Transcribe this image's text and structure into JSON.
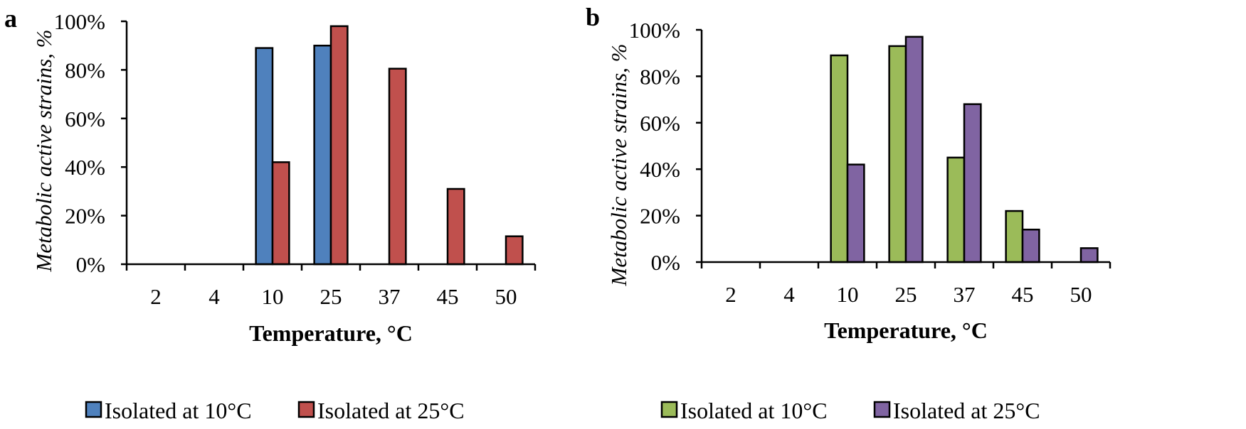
{
  "chart_data": [
    {
      "panel": "a",
      "type": "bar",
      "categories": [
        "2",
        "4",
        "10",
        "25",
        "37",
        "45",
        "50"
      ],
      "series": [
        {
          "name": "Isolated at 10°C",
          "color": "#4F81BD",
          "values": [
            0,
            0,
            89,
            90,
            0,
            0,
            0
          ]
        },
        {
          "name": "Isolated at 25°C",
          "color": "#C0504D",
          "values": [
            0,
            0,
            42,
            98,
            80.5,
            31,
            11.5
          ]
        }
      ],
      "ylabel": "Metabolic active strains, %",
      "xlabel": "Temperature, °C",
      "ylim": [
        0,
        100
      ],
      "yticks": [
        "0%",
        "20%",
        "40%",
        "60%",
        "80%",
        "100%"
      ],
      "legend": "bottom",
      "grid": false
    },
    {
      "panel": "b",
      "type": "bar",
      "categories": [
        "2",
        "4",
        "10",
        "25",
        "37",
        "45",
        "50"
      ],
      "series": [
        {
          "name": "Isolated at 10°C",
          "color": "#9BBB59",
          "values": [
            0,
            0,
            89,
            93,
            45,
            22,
            0
          ]
        },
        {
          "name": "Isolated at 25°C",
          "color": "#8064A2",
          "values": [
            0,
            0,
            42,
            97,
            68,
            14,
            6
          ]
        }
      ],
      "ylabel": "Metabolic active strains, %",
      "xlabel": "Temperature, °C",
      "ylim": [
        0,
        100
      ],
      "yticks": [
        "0%",
        "20%",
        "40%",
        "60%",
        "80%",
        "100%"
      ],
      "legend": "bottom",
      "grid": false
    }
  ]
}
